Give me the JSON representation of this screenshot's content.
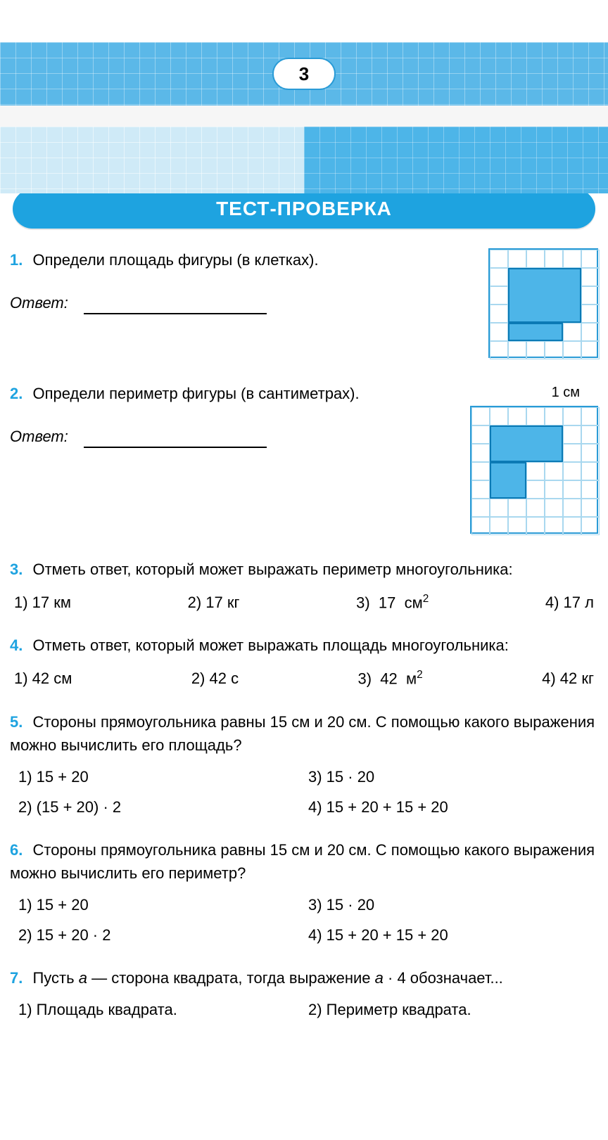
{
  "page_number": "3",
  "title": "ТЕСТ-ПРОВЕРКА",
  "answer_label": "Ответ:",
  "colors": {
    "accent": "#1ea3e0",
    "grid_light": "#a9d8ef",
    "fill": "#4db5e8",
    "banner": "#5bb8e8",
    "decor_left_bg": "#cfeaf7"
  },
  "q1": {
    "num": "1.",
    "text": "Определи площадь фигуры (в клетках).",
    "grid": {
      "cols": 6,
      "rows": 6,
      "cell": 26
    },
    "shape_cells_note": "L-shaped figure occupying approx 4x4 with 2x1 notch removed bottom-left"
  },
  "q2": {
    "num": "2.",
    "text": "Определи периметр фигуры (в сантиметрах).",
    "unit_hint": "1 см",
    "grid": {
      "cols": 7,
      "rows": 7,
      "cell": 26
    }
  },
  "q3": {
    "num": "3.",
    "text": "Отметь ответ, который может выражать периметр многоугольника:",
    "options": [
      "1)  17  км",
      "2)  17  кг",
      "3)  17  см²",
      "4)  17  л"
    ]
  },
  "q4": {
    "num": "4.",
    "text": "Отметь ответ, который может выражать площадь многоугольника:",
    "options": [
      "1)  42  см",
      "2)  42  с",
      "3)  42  м²",
      "4)  42  кг"
    ]
  },
  "q5": {
    "num": "5.",
    "text": "Стороны прямоугольника равны 15 см и 20 см. С помощью какого выражения можно вычислить его площадь?",
    "options": [
      "1)  15  +  20",
      "3)  15  ·  20",
      "2)  (15  +  20)  ·  2",
      "4)  15  +  20  +  15  +  20"
    ]
  },
  "q6": {
    "num": "6.",
    "text": "Стороны прямоугольника равны 15 см и 20 см. С помощью какого выражения можно вычислить его периметр?",
    "options": [
      "1)  15  +  20",
      "3)  15  ·  20",
      "2)  15  +  20  ·  2",
      "4)  15  +  20  +  15  +  20"
    ]
  },
  "q7": {
    "num": "7.",
    "text_a": "Пусть ",
    "text_var": "a",
    "text_b": " — сторона квадрата, тогда выражение ",
    "text_c": " · 4 обозначает...",
    "options": [
      "1) Площадь квадрата.",
      "2) Периметр квадрата."
    ]
  }
}
